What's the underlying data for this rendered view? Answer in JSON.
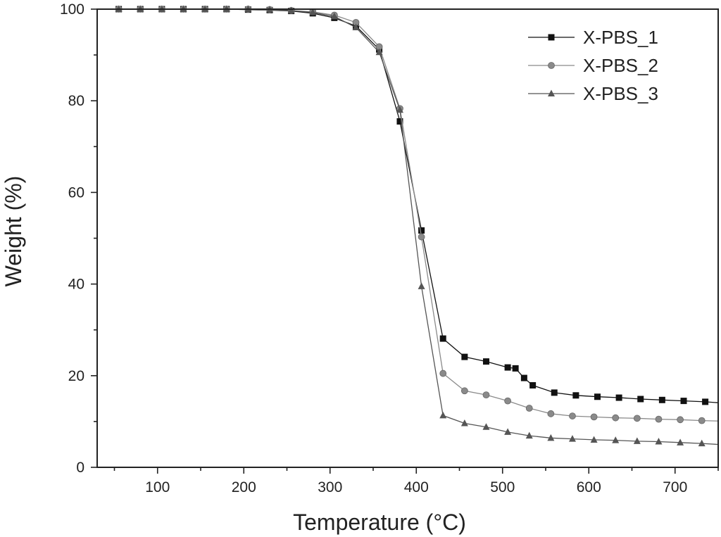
{
  "chart_data": {
    "type": "line",
    "xlabel": "Temperature (°C)",
    "ylabel": "Weight (%)",
    "xlim": [
      30,
      750
    ],
    "ylim": [
      0,
      100
    ],
    "xticks": [
      100,
      200,
      300,
      400,
      500,
      600,
      700
    ],
    "yticks": [
      0,
      20,
      40,
      60,
      80,
      100
    ],
    "legend_position": "top-right",
    "grid": false,
    "series": [
      {
        "name": "X-PBS_1",
        "marker": "square",
        "color": "#111111",
        "x": [
          30,
          55,
          80,
          105,
          130,
          155,
          180,
          205,
          230,
          255,
          280,
          305,
          330,
          357,
          381,
          406,
          431,
          456,
          481,
          506,
          515,
          525,
          535,
          560,
          585,
          610,
          635,
          660,
          685,
          710,
          735,
          750
        ],
        "y": [
          100,
          100,
          100,
          100,
          100,
          100,
          100,
          99.9,
          99.8,
          99.6,
          99.1,
          98.1,
          96.3,
          91.2,
          75.5,
          51.7,
          28.1,
          24.1,
          23.1,
          21.8,
          21.6,
          19.5,
          17.9,
          16.3,
          15.7,
          15.4,
          15.2,
          14.9,
          14.7,
          14.5,
          14.3,
          14.1
        ]
      },
      {
        "name": "X-PBS_2",
        "marker": "circle",
        "color": "#8a8a8a",
        "x": [
          30,
          55,
          80,
          105,
          130,
          155,
          180,
          205,
          230,
          255,
          280,
          305,
          330,
          357,
          381,
          406,
          431,
          456,
          481,
          506,
          531,
          556,
          581,
          606,
          631,
          656,
          681,
          706,
          731,
          750
        ],
        "y": [
          100,
          100,
          100,
          100,
          100,
          100,
          100,
          100,
          99.9,
          99.7,
          99.4,
          98.7,
          97.1,
          91.8,
          78.3,
          50.3,
          20.5,
          16.7,
          15.8,
          14.5,
          12.9,
          11.7,
          11.2,
          11.0,
          10.8,
          10.7,
          10.5,
          10.4,
          10.2,
          10.1
        ]
      },
      {
        "name": "X-PBS_3",
        "marker": "triangle",
        "color": "#555555",
        "x": [
          30,
          55,
          80,
          105,
          130,
          155,
          180,
          205,
          230,
          255,
          280,
          305,
          330,
          357,
          381,
          406,
          431,
          456,
          481,
          506,
          531,
          556,
          581,
          606,
          631,
          656,
          681,
          706,
          731,
          750
        ],
        "y": [
          100,
          100,
          100,
          100,
          100,
          100,
          100,
          100,
          99.9,
          99.7,
          99.3,
          98.4,
          96.0,
          90.6,
          78.0,
          39.5,
          11.3,
          9.6,
          8.8,
          7.7,
          6.9,
          6.4,
          6.2,
          6.0,
          5.9,
          5.7,
          5.6,
          5.4,
          5.2,
          5.0
        ]
      }
    ]
  }
}
